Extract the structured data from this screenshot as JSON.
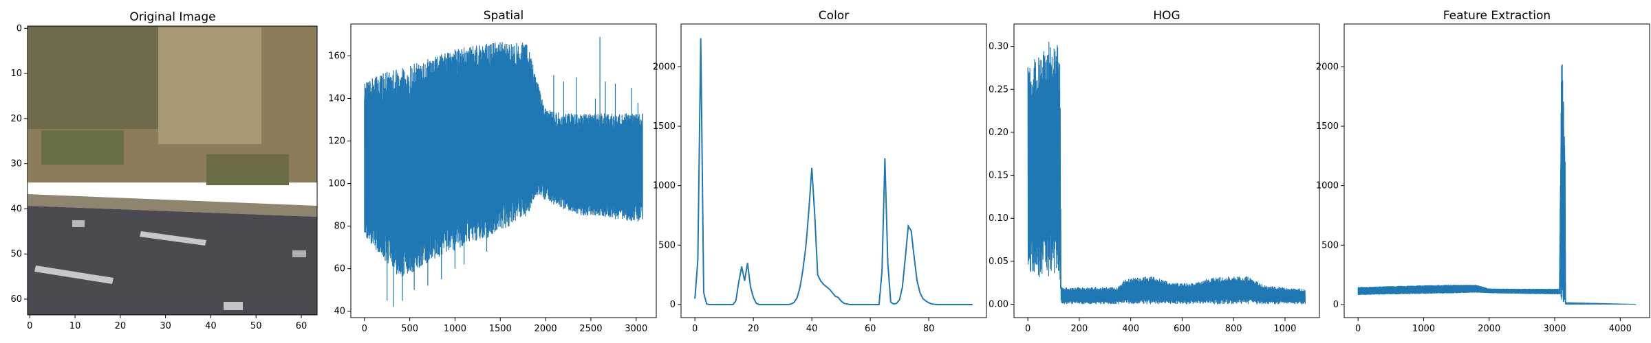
{
  "figure": {
    "line_color": "#1f77b4"
  },
  "panels": [
    {
      "title": "Original Image",
      "x_ticks": [
        "0",
        "10",
        "20",
        "30",
        "40",
        "50",
        "60"
      ],
      "y_ticks": [
        "0",
        "10",
        "20",
        "30",
        "40",
        "50",
        "60"
      ]
    }
  ],
  "chart_data": [
    {
      "type": "image",
      "title": "Original Image",
      "xlim": [
        -0.5,
        63.5
      ],
      "ylim": [
        63.5,
        -0.5
      ],
      "x_ticks": [
        0,
        10,
        20,
        30,
        40,
        50,
        60
      ],
      "y_ticks": [
        0,
        10,
        20,
        30,
        40,
        50,
        60
      ],
      "regions": [
        {
          "name": "hillside vegetation",
          "color": "#8a7a55"
        },
        {
          "name": "grass strip",
          "color": "#6e7145"
        },
        {
          "name": "road shoulder",
          "color": "#8f846e"
        },
        {
          "name": "asphalt road",
          "color": "#4a4a50"
        },
        {
          "name": "lane markings",
          "color": "#c8c8cc"
        }
      ]
    },
    {
      "type": "line",
      "title": "Spatial",
      "xlim": [
        -150,
        3222
      ],
      "ylim": [
        37,
        175
      ],
      "x_ticks": [
        0,
        500,
        1000,
        1500,
        2000,
        2500,
        3000
      ],
      "y_ticks": [
        40,
        60,
        80,
        100,
        120,
        140,
        160
      ],
      "points": 3072,
      "series": [
        {
          "envelope": [
            {
              "x": 0,
              "low": 75,
              "high": 148
            },
            {
              "x": 200,
              "low": 65,
              "high": 152
            },
            {
              "x": 400,
              "low": 55,
              "high": 154
            },
            {
              "x": 600,
              "low": 60,
              "high": 157
            },
            {
              "x": 800,
              "low": 65,
              "high": 160
            },
            {
              "x": 1000,
              "low": 68,
              "high": 163
            },
            {
              "x": 1200,
              "low": 72,
              "high": 165
            },
            {
              "x": 1400,
              "low": 75,
              "high": 166
            },
            {
              "x": 1600,
              "low": 80,
              "high": 167
            },
            {
              "x": 1800,
              "low": 85,
              "high": 166
            },
            {
              "x": 1900,
              "low": 95,
              "high": 150
            },
            {
              "x": 2000,
              "low": 92,
              "high": 135
            },
            {
              "x": 2200,
              "low": 88,
              "high": 133
            },
            {
              "x": 2400,
              "low": 85,
              "high": 133
            },
            {
              "x": 2600,
              "low": 85,
              "high": 133
            },
            {
              "x": 2800,
              "low": 83,
              "high": 133
            },
            {
              "x": 3071,
              "low": 82,
              "high": 133
            }
          ]
        }
      ],
      "spikes_high": [
        [
          1820,
          150
        ],
        [
          1900,
          142
        ],
        [
          2090,
          151
        ],
        [
          2200,
          148
        ],
        [
          2340,
          150
        ],
        [
          2550,
          140
        ],
        [
          2600,
          169
        ],
        [
          2660,
          148
        ],
        [
          2770,
          147
        ],
        [
          2950,
          145
        ],
        [
          3020,
          138
        ]
      ],
      "spikes_low": [
        [
          250,
          45
        ],
        [
          320,
          42
        ],
        [
          420,
          45
        ],
        [
          550,
          50
        ],
        [
          700,
          52
        ],
        [
          850,
          55
        ],
        [
          1000,
          60
        ],
        [
          1100,
          62
        ],
        [
          1350,
          68
        ]
      ]
    },
    {
      "type": "line",
      "title": "Color",
      "xlim": [
        -4.75,
        99.75
      ],
      "ylim": [
        -110,
        2360
      ],
      "x_ticks": [
        0,
        20,
        40,
        60,
        80
      ],
      "y_ticks": [
        0,
        500,
        1000,
        1500,
        2000
      ],
      "x": [
        0,
        1,
        2,
        3,
        4,
        5,
        6,
        7,
        8,
        9,
        10,
        11,
        12,
        13,
        14,
        15,
        16,
        17,
        18,
        19,
        20,
        21,
        22,
        23,
        24,
        25,
        26,
        27,
        28,
        29,
        30,
        31,
        32,
        33,
        34,
        35,
        36,
        37,
        38,
        39,
        40,
        41,
        42,
        43,
        44,
        45,
        46,
        47,
        48,
        49,
        50,
        51,
        52,
        53,
        54,
        55,
        56,
        57,
        58,
        59,
        60,
        61,
        62,
        63,
        64,
        65,
        66,
        67,
        68,
        69,
        70,
        71,
        72,
        73,
        74,
        75,
        76,
        77,
        78,
        79,
        80,
        81,
        82,
        83,
        84,
        85,
        86,
        87,
        88,
        89,
        90,
        91,
        92,
        93,
        94,
        95
      ],
      "y": [
        50,
        380,
        2240,
        100,
        5,
        0,
        0,
        0,
        0,
        0,
        0,
        0,
        0,
        0,
        30,
        190,
        320,
        200,
        350,
        150,
        60,
        10,
        0,
        0,
        0,
        0,
        0,
        0,
        0,
        0,
        0,
        0,
        0,
        5,
        20,
        60,
        150,
        300,
        500,
        800,
        1150,
        750,
        250,
        200,
        170,
        150,
        130,
        100,
        70,
        60,
        30,
        10,
        5,
        0,
        0,
        0,
        0,
        0,
        0,
        0,
        0,
        0,
        0,
        0,
        280,
        1230,
        350,
        20,
        5,
        10,
        40,
        150,
        400,
        660,
        620,
        400,
        200,
        100,
        50,
        30,
        15,
        5,
        2,
        0,
        0,
        0,
        0,
        0,
        0,
        0,
        0,
        0,
        0,
        0,
        0,
        0
      ]
    },
    {
      "type": "line",
      "title": "HOG",
      "xlim": [
        -54,
        1134
      ],
      "ylim": [
        -0.0155,
        0.326
      ],
      "x_ticks": [
        0,
        200,
        400,
        600,
        800,
        1000
      ],
      "y_ticks": [
        0.0,
        0.05,
        0.1,
        0.15,
        0.2,
        0.25,
        0.3
      ],
      "points": 1080,
      "series": [
        {
          "envelope": [
            {
              "x": 0,
              "low": 0.04,
              "high": 0.285
            },
            {
              "x": 40,
              "low": 0.03,
              "high": 0.29
            },
            {
              "x": 80,
              "low": 0.03,
              "high": 0.31
            },
            {
              "x": 120,
              "low": 0.03,
              "high": 0.31
            },
            {
              "x": 125,
              "low": 0.0,
              "high": 0.28
            },
            {
              "x": 130,
              "low": 0.0,
              "high": 0.02
            },
            {
              "x": 350,
              "low": 0.0,
              "high": 0.02
            },
            {
              "x": 380,
              "low": 0.0,
              "high": 0.03
            },
            {
              "x": 480,
              "low": 0.0,
              "high": 0.033
            },
            {
              "x": 560,
              "low": 0.0,
              "high": 0.025
            },
            {
              "x": 650,
              "low": 0.0,
              "high": 0.025
            },
            {
              "x": 720,
              "low": 0.0,
              "high": 0.032
            },
            {
              "x": 850,
              "low": 0.0,
              "high": 0.033
            },
            {
              "x": 920,
              "low": 0.0,
              "high": 0.022
            },
            {
              "x": 1079,
              "low": 0.0,
              "high": 0.018
            }
          ]
        }
      ]
    },
    {
      "type": "line",
      "title": "Feature Extraction",
      "xlim": [
        -212,
        4448
      ],
      "ylim": [
        -110,
        2360
      ],
      "x_ticks": [
        0,
        1000,
        2000,
        3000,
        4000
      ],
      "y_ticks": [
        0,
        500,
        1000,
        1500,
        2000
      ],
      "points": 4236,
      "series": [
        {
          "envelope": [
            {
              "x": 0,
              "low": 80,
              "high": 148
            },
            {
              "x": 500,
              "low": 85,
              "high": 155
            },
            {
              "x": 1000,
              "low": 90,
              "high": 162
            },
            {
              "x": 1500,
              "low": 95,
              "high": 167
            },
            {
              "x": 1800,
              "low": 100,
              "high": 166
            },
            {
              "x": 2000,
              "low": 95,
              "high": 135
            },
            {
              "x": 2500,
              "low": 90,
              "high": 133
            },
            {
              "x": 3071,
              "low": 85,
              "high": 133
            },
            {
              "x": 3105,
              "low": 0,
              "high": 2240
            },
            {
              "x": 3160,
              "low": 0,
              "high": 1230
            },
            {
              "x": 3167,
              "low": 0,
              "high": 20
            },
            {
              "x": 4235,
              "low": 0,
              "high": 5
            }
          ]
        }
      ]
    }
  ]
}
